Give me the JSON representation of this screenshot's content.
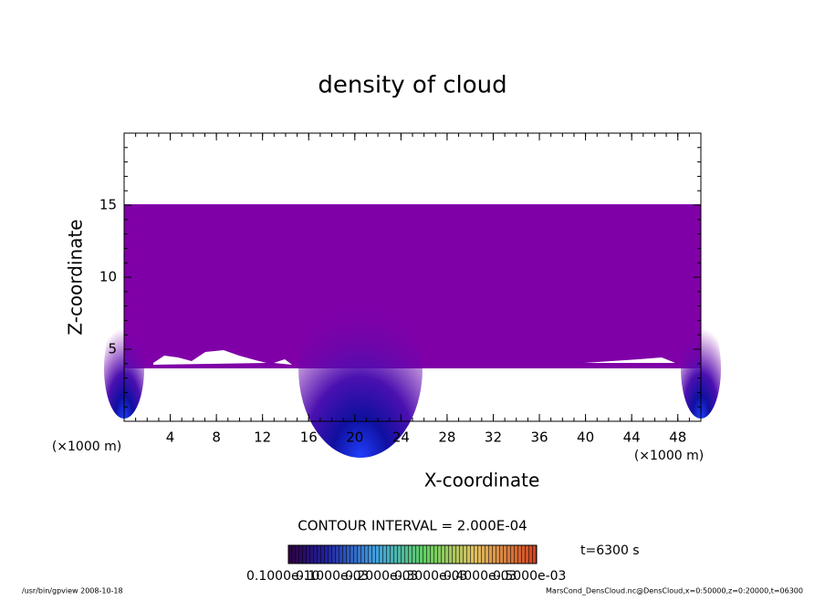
{
  "chart_data": {
    "type": "contour",
    "title": "density of cloud",
    "x_label": "X-coordinate",
    "y_label": "Z-coordinate",
    "x_unit": "(×1000 m)",
    "y_unit": "(×1000 m)",
    "xlim": [
      0,
      50
    ],
    "xticks": [
      4,
      8,
      12,
      16,
      20,
      24,
      28,
      32,
      36,
      40,
      44,
      48
    ],
    "ylim": [
      0,
      20
    ],
    "yticks": [
      5,
      10,
      15
    ],
    "contour_interval": "CONTOUR INTERVAL = 2.000E-04",
    "time_label": "t=6300 s",
    "colorbar_labels": [
      "0.1000e-10",
      "0.1000e-03",
      "0.2000e-03",
      "0.3000e-03",
      "0.4000e-03",
      "0.5000e-03"
    ],
    "footer_left": "/usr/bin/gpview   2008-10-18",
    "footer_right": "MarsCond_DensCloud.nc@DensCloud,x=0:50000,z=0:20000,t=06300"
  }
}
